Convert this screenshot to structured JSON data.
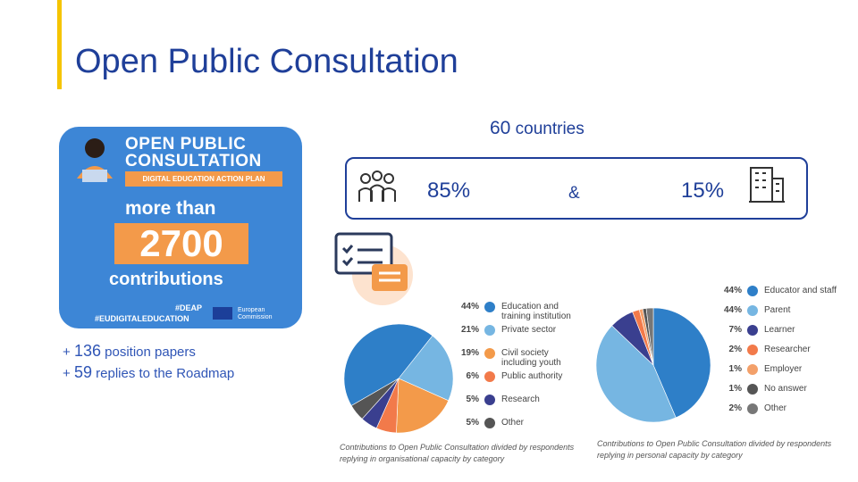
{
  "title": "Open Public Consultation",
  "promo": {
    "line1": "OPEN PUBLIC",
    "line2": "CONSULTATION",
    "banner": "DIGITAL EDUCATION ACTION PLAN",
    "more_than": "more than",
    "number": "2700",
    "contributions": "contributions",
    "hashtag1": "#DEAP",
    "hashtag2": "#EUDIGITALEDUCATION",
    "commission_line1": "European",
    "commission_line2": "Commission"
  },
  "notes": [
    {
      "prefix": "+ ",
      "number": "136",
      "text": " position papers"
    },
    {
      "prefix": "+ ",
      "number": "59",
      "text": " replies to the Roadmap"
    }
  ],
  "countries": {
    "number": "60",
    "text": " countries"
  },
  "stats": {
    "individual": "85%",
    "amp": "&",
    "organisations": "15%"
  },
  "icons": {
    "people": "people-group-icon",
    "building": "office-building-icon",
    "survey": "survey-checklist-icon"
  },
  "colors": {
    "brand_blue": "#1f3f99",
    "accent_yellow": "#f5c400",
    "orange": "#f39a4a",
    "dark_blue": "#2e7fc8",
    "light_blue": "#76b6e2",
    "navy": "#3a3f8f",
    "grey": "#555555"
  },
  "chart_data": [
    {
      "type": "pie",
      "categories": [
        "Education and training institution",
        "Private sector",
        "Civil society including youth",
        "Public authority",
        "Research",
        "Other"
      ],
      "values": [
        44,
        21,
        19,
        6,
        5,
        5
      ],
      "labels": [
        "44%",
        "21%",
        "19%",
        "6%",
        "5%",
        "5%"
      ],
      "colors": [
        "#2e7fc8",
        "#76b6e2",
        "#f39a4a",
        "#f27a4a",
        "#3a3f8f",
        "#555555"
      ],
      "caption_line1": "Contributions to Open Public Consultation divided by respondents",
      "caption_line2": "replying in organisational capacity by category"
    },
    {
      "type": "pie",
      "categories": [
        "Educator and staff",
        "Parent",
        "Learner",
        "Researcher",
        "Employer",
        "No answer",
        "Other"
      ],
      "values": [
        44,
        44,
        7,
        2,
        1,
        1,
        2
      ],
      "labels": [
        "44%",
        "44%",
        "7%",
        "2%",
        "1%",
        "1%",
        "2%"
      ],
      "colors": [
        "#2e7fc8",
        "#76b6e2",
        "#3a3f8f",
        "#f27a4a",
        "#f3a06a",
        "#555555",
        "#777777"
      ],
      "caption_line1": "Contributions to Open Public Consultation divided by respondents",
      "caption_line2": "replying in personal capacity by category"
    }
  ]
}
